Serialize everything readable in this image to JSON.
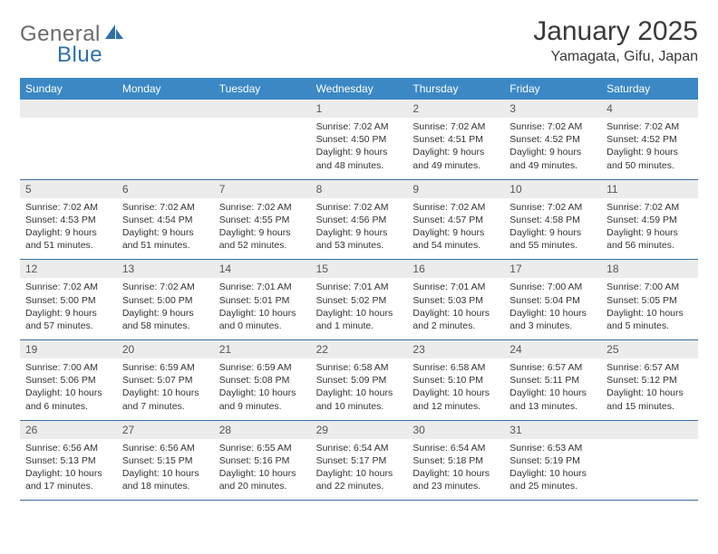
{
  "logo": {
    "general": "General",
    "blue": "Blue"
  },
  "title": "January 2025",
  "location": "Yamagata, Gifu, Japan",
  "colors": {
    "header_bg": "#3b88c4",
    "header_text": "#ffffff",
    "daynum_bg": "#ececec",
    "rule": "#3b6fa0",
    "text": "#333333",
    "logo_gray": "#6b6b6b",
    "logo_blue": "#2f6fa9"
  },
  "dayNames": [
    "Sunday",
    "Monday",
    "Tuesday",
    "Wednesday",
    "Thursday",
    "Friday",
    "Saturday"
  ],
  "weeks": [
    [
      {
        "n": "",
        "sr": "",
        "ss": "",
        "dl": ""
      },
      {
        "n": "",
        "sr": "",
        "ss": "",
        "dl": ""
      },
      {
        "n": "",
        "sr": "",
        "ss": "",
        "dl": ""
      },
      {
        "n": "1",
        "sr": "Sunrise: 7:02 AM",
        "ss": "Sunset: 4:50 PM",
        "dl": "Daylight: 9 hours and 48 minutes."
      },
      {
        "n": "2",
        "sr": "Sunrise: 7:02 AM",
        "ss": "Sunset: 4:51 PM",
        "dl": "Daylight: 9 hours and 49 minutes."
      },
      {
        "n": "3",
        "sr": "Sunrise: 7:02 AM",
        "ss": "Sunset: 4:52 PM",
        "dl": "Daylight: 9 hours and 49 minutes."
      },
      {
        "n": "4",
        "sr": "Sunrise: 7:02 AM",
        "ss": "Sunset: 4:52 PM",
        "dl": "Daylight: 9 hours and 50 minutes."
      }
    ],
    [
      {
        "n": "5",
        "sr": "Sunrise: 7:02 AM",
        "ss": "Sunset: 4:53 PM",
        "dl": "Daylight: 9 hours and 51 minutes."
      },
      {
        "n": "6",
        "sr": "Sunrise: 7:02 AM",
        "ss": "Sunset: 4:54 PM",
        "dl": "Daylight: 9 hours and 51 minutes."
      },
      {
        "n": "7",
        "sr": "Sunrise: 7:02 AM",
        "ss": "Sunset: 4:55 PM",
        "dl": "Daylight: 9 hours and 52 minutes."
      },
      {
        "n": "8",
        "sr": "Sunrise: 7:02 AM",
        "ss": "Sunset: 4:56 PM",
        "dl": "Daylight: 9 hours and 53 minutes."
      },
      {
        "n": "9",
        "sr": "Sunrise: 7:02 AM",
        "ss": "Sunset: 4:57 PM",
        "dl": "Daylight: 9 hours and 54 minutes."
      },
      {
        "n": "10",
        "sr": "Sunrise: 7:02 AM",
        "ss": "Sunset: 4:58 PM",
        "dl": "Daylight: 9 hours and 55 minutes."
      },
      {
        "n": "11",
        "sr": "Sunrise: 7:02 AM",
        "ss": "Sunset: 4:59 PM",
        "dl": "Daylight: 9 hours and 56 minutes."
      }
    ],
    [
      {
        "n": "12",
        "sr": "Sunrise: 7:02 AM",
        "ss": "Sunset: 5:00 PM",
        "dl": "Daylight: 9 hours and 57 minutes."
      },
      {
        "n": "13",
        "sr": "Sunrise: 7:02 AM",
        "ss": "Sunset: 5:00 PM",
        "dl": "Daylight: 9 hours and 58 minutes."
      },
      {
        "n": "14",
        "sr": "Sunrise: 7:01 AM",
        "ss": "Sunset: 5:01 PM",
        "dl": "Daylight: 10 hours and 0 minutes."
      },
      {
        "n": "15",
        "sr": "Sunrise: 7:01 AM",
        "ss": "Sunset: 5:02 PM",
        "dl": "Daylight: 10 hours and 1 minute."
      },
      {
        "n": "16",
        "sr": "Sunrise: 7:01 AM",
        "ss": "Sunset: 5:03 PM",
        "dl": "Daylight: 10 hours and 2 minutes."
      },
      {
        "n": "17",
        "sr": "Sunrise: 7:00 AM",
        "ss": "Sunset: 5:04 PM",
        "dl": "Daylight: 10 hours and 3 minutes."
      },
      {
        "n": "18",
        "sr": "Sunrise: 7:00 AM",
        "ss": "Sunset: 5:05 PM",
        "dl": "Daylight: 10 hours and 5 minutes."
      }
    ],
    [
      {
        "n": "19",
        "sr": "Sunrise: 7:00 AM",
        "ss": "Sunset: 5:06 PM",
        "dl": "Daylight: 10 hours and 6 minutes."
      },
      {
        "n": "20",
        "sr": "Sunrise: 6:59 AM",
        "ss": "Sunset: 5:07 PM",
        "dl": "Daylight: 10 hours and 7 minutes."
      },
      {
        "n": "21",
        "sr": "Sunrise: 6:59 AM",
        "ss": "Sunset: 5:08 PM",
        "dl": "Daylight: 10 hours and 9 minutes."
      },
      {
        "n": "22",
        "sr": "Sunrise: 6:58 AM",
        "ss": "Sunset: 5:09 PM",
        "dl": "Daylight: 10 hours and 10 minutes."
      },
      {
        "n": "23",
        "sr": "Sunrise: 6:58 AM",
        "ss": "Sunset: 5:10 PM",
        "dl": "Daylight: 10 hours and 12 minutes."
      },
      {
        "n": "24",
        "sr": "Sunrise: 6:57 AM",
        "ss": "Sunset: 5:11 PM",
        "dl": "Daylight: 10 hours and 13 minutes."
      },
      {
        "n": "25",
        "sr": "Sunrise: 6:57 AM",
        "ss": "Sunset: 5:12 PM",
        "dl": "Daylight: 10 hours and 15 minutes."
      }
    ],
    [
      {
        "n": "26",
        "sr": "Sunrise: 6:56 AM",
        "ss": "Sunset: 5:13 PM",
        "dl": "Daylight: 10 hours and 17 minutes."
      },
      {
        "n": "27",
        "sr": "Sunrise: 6:56 AM",
        "ss": "Sunset: 5:15 PM",
        "dl": "Daylight: 10 hours and 18 minutes."
      },
      {
        "n": "28",
        "sr": "Sunrise: 6:55 AM",
        "ss": "Sunset: 5:16 PM",
        "dl": "Daylight: 10 hours and 20 minutes."
      },
      {
        "n": "29",
        "sr": "Sunrise: 6:54 AM",
        "ss": "Sunset: 5:17 PM",
        "dl": "Daylight: 10 hours and 22 minutes."
      },
      {
        "n": "30",
        "sr": "Sunrise: 6:54 AM",
        "ss": "Sunset: 5:18 PM",
        "dl": "Daylight: 10 hours and 23 minutes."
      },
      {
        "n": "31",
        "sr": "Sunrise: 6:53 AM",
        "ss": "Sunset: 5:19 PM",
        "dl": "Daylight: 10 hours and 25 minutes."
      },
      {
        "n": "",
        "sr": "",
        "ss": "",
        "dl": ""
      }
    ]
  ]
}
